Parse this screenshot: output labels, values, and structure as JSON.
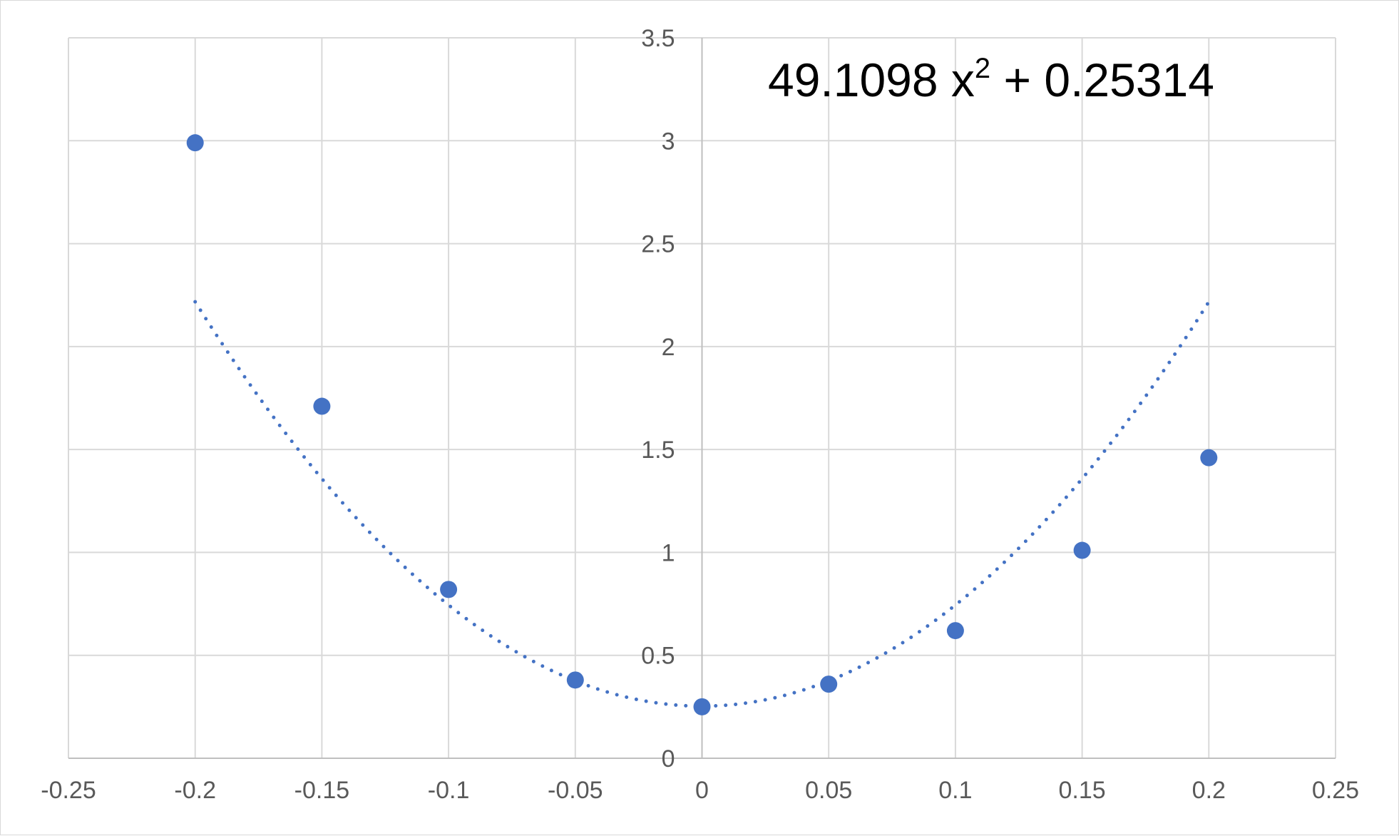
{
  "chart_data": {
    "type": "scatter",
    "title": "",
    "xlabel": "",
    "ylabel": "",
    "xlim": [
      -0.25,
      0.25
    ],
    "ylim": [
      0,
      3.5
    ],
    "x_ticks": [
      -0.25,
      -0.2,
      -0.15,
      -0.1,
      -0.05,
      0,
      0.05,
      0.1,
      0.15,
      0.2,
      0.25
    ],
    "x_tick_labels": [
      "-0.25",
      "-0.2",
      "-0.15",
      "-0.1",
      "-0.05",
      "0",
      "0.05",
      "0.1",
      "0.15",
      "0.2",
      "0.25"
    ],
    "y_ticks": [
      0,
      0.5,
      1,
      1.5,
      2,
      2.5,
      3,
      3.5
    ],
    "y_tick_labels": [
      "0",
      "0.5",
      "1",
      "1.5",
      "2",
      "2.5",
      "3",
      "3.5"
    ],
    "grid": true,
    "legend": "none",
    "series": [
      {
        "x": [
          -0.2,
          -0.15,
          -0.1,
          -0.05,
          0,
          0.05,
          0.1,
          0.15,
          0.2
        ],
        "y": [
          2.99,
          1.71,
          0.82,
          0.38,
          0.25,
          0.36,
          0.62,
          1.01,
          1.46
        ]
      }
    ],
    "trendline": {
      "style": "dotted",
      "coefficients": {
        "a": 49.1098,
        "c": 0.25314
      },
      "x_range": [
        -0.2,
        0.2
      ],
      "equation_main": "49.1098 x",
      "equation_exponent": "2",
      "equation_tail": " + 0.25314"
    },
    "colors": {
      "points": "#4472c4",
      "trendline": "#4472c4",
      "grid": "#d9d9d9",
      "tick_text": "#595959",
      "equation_text": "#000000"
    }
  }
}
